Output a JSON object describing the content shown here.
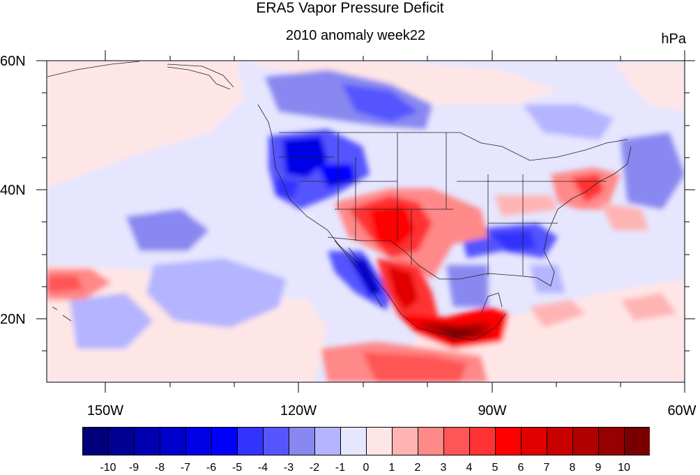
{
  "title": "ERA5 Vapor Pressure Deficit",
  "subtitle": "2010 anomaly week22",
  "units": "hPa",
  "lat_labels": [
    "60N",
    "40N",
    "20N"
  ],
  "lon_labels": [
    "150W",
    "120W",
    "90W",
    "60W"
  ],
  "colorbar": {
    "colors": [
      "#00007a",
      "#000095",
      "#0000b0",
      "#0000cc",
      "#0000e6",
      "#0000ff",
      "#3333ff",
      "#5555ff",
      "#8888f0",
      "#b4b4ff",
      "#e6e6ff",
      "#ffe6e6",
      "#ffb4b4",
      "#ff8888",
      "#ff5555",
      "#ff3333",
      "#ff0000",
      "#e00000",
      "#c80000",
      "#b00000",
      "#960000",
      "#780000"
    ],
    "labels": [
      "-10",
      "-9",
      "-8",
      "-7",
      "-6",
      "-5",
      "-4",
      "-3",
      "-2",
      "-1",
      "0",
      "1",
      "2",
      "3",
      "4",
      "5",
      "6",
      "7",
      "8",
      "9",
      "10"
    ]
  }
}
